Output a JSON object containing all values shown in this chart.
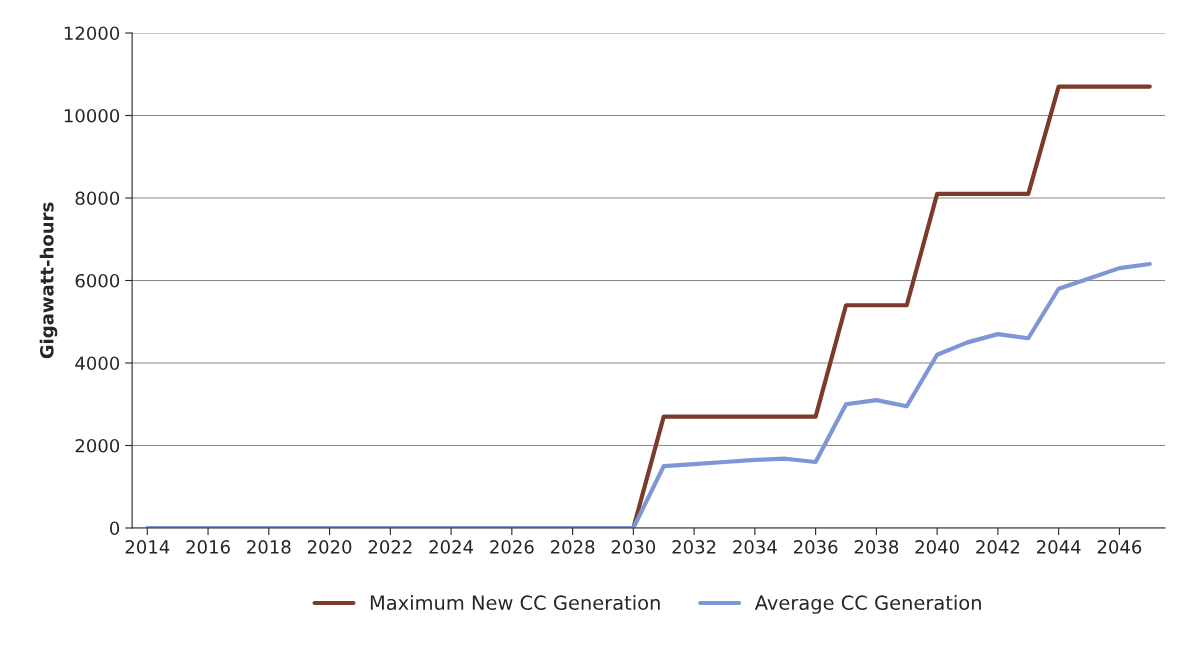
{
  "chart_data": {
    "type": "line",
    "ylabel": "Gigawatt-hours",
    "x": [
      2014,
      2015,
      2016,
      2017,
      2018,
      2019,
      2020,
      2021,
      2022,
      2023,
      2024,
      2025,
      2026,
      2027,
      2028,
      2029,
      2030,
      2031,
      2032,
      2033,
      2034,
      2035,
      2036,
      2037,
      2038,
      2039,
      2040,
      2041,
      2042,
      2043,
      2044,
      2045,
      2046,
      2047
    ],
    "series": [
      {
        "name": "Maximum New CC Generation",
        "color": "#7b3a2a",
        "values": [
          null,
          null,
          null,
          null,
          null,
          null,
          null,
          null,
          null,
          null,
          null,
          null,
          null,
          null,
          null,
          null,
          0,
          2700,
          2700,
          2700,
          2700,
          2700,
          2700,
          5400,
          5400,
          5400,
          8100,
          8100,
          8100,
          8100,
          10700,
          10700,
          10700,
          10700
        ]
      },
      {
        "name": "Average CC Generation",
        "color": "#7f96d6",
        "values": [
          0,
          0,
          0,
          0,
          0,
          0,
          0,
          0,
          0,
          0,
          0,
          0,
          0,
          0,
          0,
          0,
          0,
          1500,
          1550,
          1600,
          1650,
          1680,
          1600,
          3000,
          3100,
          2950,
          4200,
          4500,
          4700,
          4600,
          5800,
          6050,
          6300,
          6400
        ]
      }
    ],
    "xlim": [
      2013.5,
      2047.5
    ],
    "xticks": [
      2014,
      2016,
      2018,
      2020,
      2022,
      2024,
      2026,
      2028,
      2030,
      2032,
      2034,
      2036,
      2038,
      2040,
      2042,
      2044,
      2046
    ],
    "ylim": [
      0,
      12000
    ],
    "yticks": [
      0,
      2000,
      4000,
      6000,
      8000,
      10000,
      12000
    ],
    "grid": "y",
    "legend": "bottom",
    "marker": "none",
    "line_style": "solid"
  }
}
